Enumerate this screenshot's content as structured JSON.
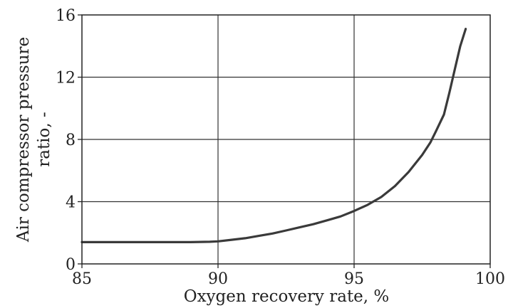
{
  "chart_data": {
    "type": "line",
    "title": "",
    "xlabel": "Oxygen recovery rate, %",
    "ylabel_lines": [
      "Air compressor pressure",
      "ratio, -"
    ],
    "xlim": [
      85,
      100
    ],
    "ylim": [
      0,
      16
    ],
    "xticks": [
      85,
      90,
      95,
      100
    ],
    "yticks": [
      0,
      4,
      8,
      12,
      16
    ],
    "grid": true,
    "legend": "none",
    "colors": {
      "line": "#3a3a3a",
      "grid": "#333333",
      "frame": "#222222",
      "text": "#222222"
    },
    "series": [
      {
        "x": [
          85.0,
          86.0,
          87.0,
          88.0,
          89.0,
          89.7,
          90.0,
          90.5,
          91.0,
          91.5,
          92.0,
          92.5,
          93.0,
          93.5,
          94.0,
          94.5,
          95.0,
          95.5,
          96.0,
          96.5,
          97.0,
          97.5,
          97.8,
          98.0,
          98.3,
          98.5,
          98.7,
          98.9,
          99.1
        ],
        "y": [
          1.4,
          1.4,
          1.4,
          1.4,
          1.4,
          1.42,
          1.45,
          1.55,
          1.65,
          1.8,
          1.95,
          2.15,
          2.35,
          2.55,
          2.8,
          3.05,
          3.4,
          3.8,
          4.3,
          5.0,
          5.9,
          7.0,
          7.8,
          8.5,
          9.6,
          11.0,
          12.5,
          14.0,
          15.1
        ]
      }
    ]
  }
}
